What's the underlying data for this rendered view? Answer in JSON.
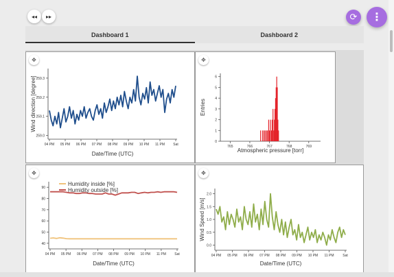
{
  "nav": {
    "back_icon": "◂◂",
    "forward_icon": "▸▸"
  },
  "fab": {
    "refresh_icon": "⟳",
    "menu_icon": "⋮"
  },
  "tabs": [
    {
      "label": "Dashboard 1"
    },
    {
      "label": "Dashboard 2"
    }
  ],
  "move_icon": "✥",
  "colors": {
    "accent": "#a66de0",
    "wind_dir": "#1f4e8c",
    "pressure": "#e4232a",
    "humidity_inside": "#f0c27a",
    "humidity_outside": "#c0504d",
    "wind_speed": "#8fad4a"
  },
  "chart_data": [
    {
      "type": "line",
      "xlabel": "Date/Time (UTC)",
      "ylabel": "Wind direction [degree]",
      "xticks": [
        "04 PM",
        "05 PM",
        "06 PM",
        "07 PM",
        "08 PM",
        "09 PM",
        "10 PM",
        "11 PM",
        "Sat"
      ],
      "yticks": [
        "259.0",
        "259.1",
        "259.2",
        "259.3"
      ],
      "ylim": [
        258.98,
        259.35
      ],
      "x_range_hours": [
        0,
        8
      ],
      "series": [
        {
          "color": "#1f4e8c",
          "values": [
            259.13,
            259.08,
            259.05,
            259.1,
            259.06,
            259.12,
            259.04,
            259.09,
            259.14,
            259.07,
            259.1,
            259.15,
            259.09,
            259.13,
            259.06,
            259.11,
            259.08,
            259.13,
            259.1,
            259.15,
            259.09,
            259.12,
            259.14,
            259.1,
            259.08,
            259.13,
            259.16,
            259.11,
            259.14,
            259.09,
            259.17,
            259.12,
            259.15,
            259.19,
            259.13,
            259.18,
            259.14,
            259.2,
            259.16,
            259.21,
            259.15,
            259.23,
            259.18,
            259.14,
            259.2,
            259.17,
            259.24,
            259.18,
            259.31,
            259.2,
            259.16,
            259.22,
            259.19,
            259.25,
            259.17,
            259.28,
            259.21,
            259.24,
            259.18,
            259.22,
            259.26,
            259.2,
            259.24,
            259.12,
            259.19,
            259.22,
            259.17,
            259.24,
            259.2,
            259.26
          ]
        }
      ]
    },
    {
      "type": "bar",
      "xlabel": "Atmospheric pressure [torr]",
      "ylabel": "Entries",
      "xticks": [
        "765",
        "766",
        "767",
        "768",
        "769"
      ],
      "yticks": [
        "0",
        "1",
        "2",
        "3",
        "4",
        "5",
        "6"
      ],
      "xlim": [
        764.5,
        769.6
      ],
      "ylim": [
        0,
        6.3
      ],
      "bins_x": [
        766.55,
        766.65,
        766.72,
        766.78,
        766.85,
        766.9,
        766.96,
        767.0,
        767.05,
        767.1,
        767.14,
        767.18,
        767.22,
        767.25,
        767.28,
        767.31,
        767.34,
        767.37,
        767.4,
        767.43,
        767.46
      ],
      "bins_count": [
        1,
        1,
        1,
        1,
        1,
        1,
        2,
        1,
        2,
        1,
        2,
        3,
        1,
        2,
        3,
        4,
        5,
        6,
        5,
        2,
        1
      ],
      "color": "#e4232a"
    },
    {
      "type": "line",
      "xlabel": "Date/Time (UTC)",
      "ylabel": "",
      "xticks": [
        "04 PM",
        "05 PM",
        "06 PM",
        "07 PM",
        "08 PM",
        "09 PM",
        "10 PM",
        "11 PM",
        "Sat"
      ],
      "yticks": [
        "40",
        "50",
        "60",
        "70",
        "80",
        "90"
      ],
      "ylim": [
        35,
        95
      ],
      "x_range_hours": [
        0,
        8
      ],
      "legend_position": "top-left",
      "series": [
        {
          "name": "Humidity inside [%]",
          "color": "#f0c27a",
          "values": [
            44.5,
            44.8,
            44.3,
            44.9,
            44.6,
            44.1,
            44.0,
            44.0,
            44.0,
            44.0,
            44.0,
            44.0,
            44.0,
            44.0,
            44.0,
            44.0,
            44.0,
            44.0,
            44.0,
            44.0,
            44.0,
            44.0,
            44.0,
            44.0,
            44.0,
            44.0,
            44.0,
            44.0,
            44.0,
            44.0,
            44.0,
            44.0,
            44.0,
            44.0,
            44.0,
            44.0,
            44.0,
            44.0,
            44.0,
            44.0
          ]
        },
        {
          "name": "Humidity outside [%]",
          "color": "#c0504d",
          "values": [
            86,
            86,
            86,
            86,
            86,
            85.5,
            85,
            85,
            84.5,
            84.5,
            85,
            85,
            84.5,
            84.5,
            84,
            84,
            84,
            85,
            84,
            84,
            83,
            84,
            85,
            85,
            85,
            85.5,
            85.5,
            84.5,
            85,
            85.5,
            85,
            85.5,
            85.5,
            86,
            85.5,
            86,
            86,
            86,
            86,
            85.5
          ]
        }
      ]
    },
    {
      "type": "line",
      "xlabel": "Date/Time (UTC)",
      "ylabel": "Wind Speed [m/s]",
      "xticks": [
        "04 PM",
        "05 PM",
        "06 PM",
        "07 PM",
        "08 PM",
        "09 PM",
        "10 PM",
        "11 PM",
        "Sat"
      ],
      "yticks": [
        "0.0",
        "0.5",
        "1.0",
        "1.5",
        "2.0"
      ],
      "ylim": [
        -0.2,
        2.2
      ],
      "x_range_hours": [
        0,
        8
      ],
      "series": [
        {
          "color": "#8fad4a",
          "values": [
            1.4,
            1.2,
            1.5,
            0.9,
            1.1,
            0.6,
            1.3,
            0.8,
            1.2,
            1.0,
            0.7,
            1.4,
            0.9,
            1.1,
            0.6,
            1.5,
            1.0,
            0.8,
            1.3,
            0.7,
            1.6,
            0.9,
            1.2,
            0.6,
            1.4,
            0.8,
            1.7,
            1.0,
            0.7,
            2.0,
            1.1,
            0.6,
            1.3,
            0.8,
            0.5,
            1.0,
            0.4,
            0.9,
            0.3,
            0.7,
            1.0,
            0.4,
            0.6,
            0.2,
            0.8,
            0.3,
            0.5,
            0.1,
            0.4,
            0.7,
            0.2,
            0.5,
            0.3,
            0.6,
            0.1,
            0.4,
            0.2,
            0.5,
            0.3,
            0.0,
            0.4,
            0.2,
            0.6,
            0.3,
            0.1,
            0.5,
            0.7,
            0.3,
            0.6,
            0.4
          ]
        }
      ]
    }
  ]
}
